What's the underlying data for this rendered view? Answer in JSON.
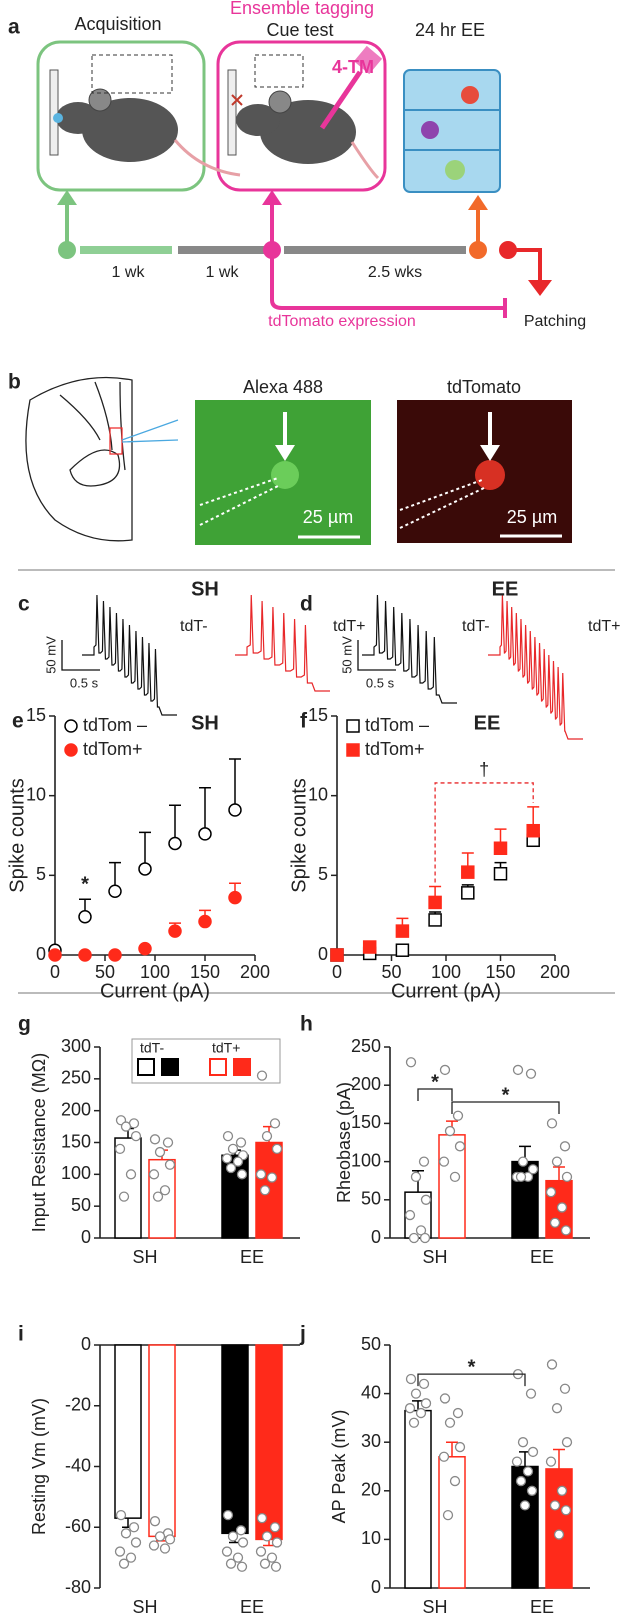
{
  "panel_labels": [
    "a",
    "b",
    "c",
    "d",
    "e",
    "f",
    "g",
    "h",
    "i",
    "j"
  ],
  "diagram": {
    "acquisition": "Acquisition",
    "ensemble_tagging": "Ensemble tagging",
    "cue_test": "Cue test",
    "ee": "24 hr EE",
    "drug": "4-TM",
    "durations": [
      "1 wk",
      "1 wk",
      "2.5 wks"
    ],
    "expression": "tdTomato expression",
    "patching": "Patching"
  },
  "imaging": {
    "channels": [
      "Alexa 488",
      "tdTomato"
    ],
    "scale_bar": "25 µm"
  },
  "traces": [
    {
      "title": "SH",
      "labels": [
        "tdT-",
        "tdT+"
      ],
      "scale_v": "50 mV",
      "scale_t": "0.5 s"
    },
    {
      "title": "EE",
      "labels": [
        "tdT-",
        "tdT+"
      ],
      "scale_v": "50 mV",
      "scale_t": "0.5 s"
    }
  ],
  "chart_data": [
    {
      "type": "scatter",
      "title": "SH",
      "xlabel": "Current (pA)",
      "ylabel": "Spike counts",
      "xlim": [
        0,
        200
      ],
      "ylim": [
        0,
        15
      ],
      "xticks": [
        0,
        50,
        100,
        150,
        200
      ],
      "yticks": [
        0,
        5,
        10,
        15
      ],
      "annotations": [
        "*"
      ],
      "series": [
        {
          "name": "tdTom –",
          "color": "#000000",
          "marker": "circle",
          "filled": false,
          "x": [
            0,
            30,
            60,
            90,
            120,
            150,
            180
          ],
          "values": [
            0.3,
            2.4,
            4.0,
            5.4,
            7.0,
            7.6,
            9.1
          ],
          "errors": [
            0,
            1.1,
            1.8,
            2.3,
            2.4,
            2.9,
            3.2
          ]
        },
        {
          "name": "tdTom+",
          "color": "#ff2a1a",
          "marker": "circle",
          "filled": true,
          "x": [
            0,
            30,
            60,
            90,
            120,
            150,
            180
          ],
          "values": [
            0,
            0,
            0,
            0.4,
            1.5,
            2.1,
            3.6
          ],
          "errors": [
            0,
            0,
            0,
            0.1,
            0.5,
            0.7,
            0.9
          ]
        }
      ]
    },
    {
      "type": "scatter",
      "title": "EE",
      "xlabel": "Current (pA)",
      "ylabel": "Spike counts",
      "xlim": [
        0,
        200
      ],
      "ylim": [
        0,
        15
      ],
      "xticks": [
        0,
        50,
        100,
        150,
        200
      ],
      "yticks": [
        0,
        5,
        10,
        15
      ],
      "annotations": [
        "†"
      ],
      "series": [
        {
          "name": "tdTom –",
          "color": "#000000",
          "marker": "square",
          "filled": false,
          "x": [
            0,
            30,
            60,
            90,
            120,
            150,
            180
          ],
          "values": [
            0,
            0.1,
            0.3,
            2.2,
            3.9,
            5.1,
            7.2
          ],
          "errors": [
            0,
            0,
            0.2,
            0.5,
            0.5,
            0.7,
            0.8
          ]
        },
        {
          "name": "tdTom+",
          "color": "#ff2a1a",
          "marker": "square",
          "filled": true,
          "x": [
            0,
            30,
            60,
            90,
            120,
            150,
            180
          ],
          "values": [
            0,
            0.5,
            1.5,
            3.3,
            5.2,
            6.7,
            7.8
          ],
          "errors": [
            0,
            0.2,
            0.8,
            1.0,
            1.2,
            1.2,
            1.5
          ]
        }
      ]
    },
    {
      "type": "bar",
      "ylabel": "Input Resistance (MΩ)",
      "ylim": [
        0,
        300
      ],
      "yticks": [
        0,
        50,
        100,
        150,
        200,
        250,
        300
      ],
      "categories": [
        "SH",
        "EE"
      ],
      "legend": true,
      "annotations": [],
      "series": [
        {
          "name": "tdT-",
          "color": "#000000",
          "fill": [
            "#ffffff",
            "#000000"
          ],
          "values": [
            157,
            130
          ],
          "errors": [
            15,
            8
          ],
          "points": [
            [
              185,
              180,
              175,
              160,
              140,
              100,
              65
            ],
            [
              160,
              150,
              140,
              130,
              125,
              120,
              110,
              100
            ]
          ]
        },
        {
          "name": "tdT+",
          "color": "#ff2a1a",
          "fill": [
            "#ffffff",
            "#ff2a1a"
          ],
          "values": [
            123,
            150
          ],
          "errors": [
            15,
            25
          ],
          "points": [
            [
              155,
              150,
              135,
              115,
              100,
              75,
              65
            ],
            [
              255,
              180,
              160,
              140,
              100,
              95,
              75
            ]
          ]
        }
      ]
    },
    {
      "type": "bar",
      "ylabel": "Rheobase  (pA)",
      "ylim": [
        0,
        250
      ],
      "yticks": [
        0,
        50,
        100,
        150,
        200,
        250
      ],
      "categories": [
        "SH",
        "EE"
      ],
      "legend": false,
      "annotations": [
        "*",
        "*"
      ],
      "series": [
        {
          "color": "#000000",
          "fill": [
            "#ffffff",
            "#000000"
          ],
          "values": [
            60,
            100
          ],
          "errors": [
            28,
            20
          ],
          "points": [
            [
              230,
              100,
              80,
              50,
              30,
              10,
              0,
              0
            ],
            [
              220,
              215,
              100,
              90,
              80,
              80,
              80
            ]
          ]
        },
        {
          "color": "#ff2a1a",
          "fill": [
            "#ffffff",
            "#ff2a1a"
          ],
          "values": [
            135,
            75
          ],
          "errors": [
            18,
            18
          ],
          "points": [
            [
              220,
              160,
              140,
              120,
              100,
              80
            ],
            [
              150,
              120,
              100,
              80,
              60,
              40,
              20,
              10
            ]
          ]
        }
      ]
    },
    {
      "type": "bar",
      "ylabel": "Resting Vm (mV)",
      "ylim": [
        -80,
        0
      ],
      "yticks": [
        0,
        -20,
        -40,
        -60,
        -80
      ],
      "categories": [
        "SH",
        "EE"
      ],
      "legend": false,
      "annotations": [],
      "series": [
        {
          "color": "#000000",
          "fill": [
            "#ffffff",
            "#000000"
          ],
          "values": [
            -57,
            -62
          ],
          "errors": [
            3,
            3
          ],
          "points": [
            [
              -56,
              -60,
              -62,
              -65,
              -68,
              -70,
              -72
            ],
            [
              -56,
              -61,
              -63,
              -65,
              -68,
              -70,
              -72,
              -73
            ]
          ]
        },
        {
          "color": "#ff2a1a",
          "fill": [
            "#ffffff",
            "#ff2a1a"
          ],
          "values": [
            -63,
            -64
          ],
          "errors": [
            1.5,
            2
          ],
          "points": [
            [
              -58,
              -62,
              -63,
              -64,
              -66,
              -67
            ],
            [
              -57,
              -60,
              -63,
              -65,
              -68,
              -70,
              -72,
              -73
            ]
          ]
        }
      ]
    },
    {
      "type": "bar",
      "ylabel": "AP Peak (mV)",
      "ylim": [
        0,
        50
      ],
      "yticks": [
        0,
        10,
        20,
        30,
        40,
        50
      ],
      "categories": [
        "SH",
        "EE"
      ],
      "legend": false,
      "annotations": [
        "*"
      ],
      "series": [
        {
          "color": "#000000",
          "fill": [
            "#ffffff",
            "#000000"
          ],
          "values": [
            36.5,
            25
          ],
          "errors": [
            2,
            3
          ],
          "points": [
            [
              43,
              42,
              40,
              38,
              37,
              36,
              34
            ],
            [
              44,
              40,
              30,
              28,
              26,
              24,
              22,
              20,
              17
            ]
          ]
        },
        {
          "color": "#ff2a1a",
          "fill": [
            "#ffffff",
            "#ff2a1a"
          ],
          "values": [
            27,
            24.5
          ],
          "errors": [
            3,
            4
          ],
          "points": [
            [
              39,
              36,
              34,
              29,
              27,
              22,
              15
            ],
            [
              46,
              41,
              37,
              30,
              26,
              20,
              17,
              16,
              11
            ]
          ]
        }
      ]
    }
  ]
}
